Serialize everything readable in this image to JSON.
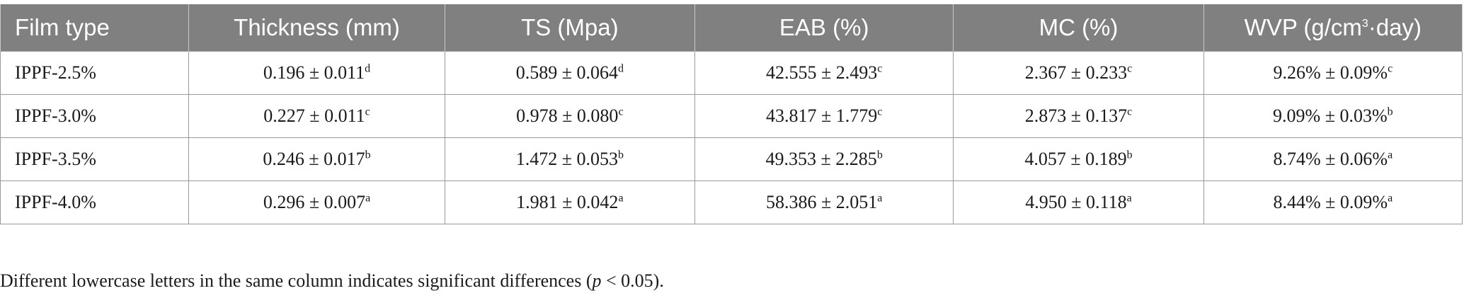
{
  "table": {
    "headers": [
      {
        "text": "Film type",
        "sup": "",
        "suffix": ""
      },
      {
        "text": "Thickness (mm)",
        "sup": "",
        "suffix": ""
      },
      {
        "text": "TS (Mpa)",
        "sup": "",
        "suffix": ""
      },
      {
        "text": "EAB (%)",
        "sup": "",
        "suffix": ""
      },
      {
        "text": "MC (%)",
        "sup": "",
        "suffix": ""
      },
      {
        "text": "WVP (g/cm",
        "sup": "3",
        "suffix": "·day)"
      }
    ],
    "rows": [
      {
        "film": "IPPF-2.5%",
        "cells": [
          {
            "value": "0.196 ± 0.011",
            "sig": "d"
          },
          {
            "value": "0.589 ± 0.064",
            "sig": "d"
          },
          {
            "value": "42.555 ± 2.493",
            "sig": "c"
          },
          {
            "value": "2.367 ± 0.233",
            "sig": "c"
          },
          {
            "value": "9.26% ± 0.09%",
            "sig": "c"
          }
        ]
      },
      {
        "film": "IPPF-3.0%",
        "cells": [
          {
            "value": "0.227 ± 0.011",
            "sig": "c"
          },
          {
            "value": "0.978 ± 0.080",
            "sig": "c"
          },
          {
            "value": "43.817 ± 1.779",
            "sig": "c"
          },
          {
            "value": "2.873 ± 0.137",
            "sig": "c"
          },
          {
            "value": "9.09% ± 0.03%",
            "sig": "b"
          }
        ]
      },
      {
        "film": "IPPF-3.5%",
        "cells": [
          {
            "value": "0.246 ± 0.017",
            "sig": "b"
          },
          {
            "value": "1.472 ± 0.053",
            "sig": "b"
          },
          {
            "value": "49.353 ± 2.285",
            "sig": "b"
          },
          {
            "value": "4.057 ± 0.189",
            "sig": "b"
          },
          {
            "value": "8.74% ± 0.06%",
            "sig": "a"
          }
        ]
      },
      {
        "film": "IPPF-4.0%",
        "cells": [
          {
            "value": "0.296 ± 0.007",
            "sig": "a"
          },
          {
            "value": "1.981 ± 0.042",
            "sig": "a"
          },
          {
            "value": "58.386 ± 2.051",
            "sig": "a"
          },
          {
            "value": "4.950 ± 0.118",
            "sig": "a"
          },
          {
            "value": "8.44% ± 0.09%",
            "sig": "a"
          }
        ]
      }
    ]
  },
  "footnote": {
    "before": "Different lowercase letters in the same column indicates significant differences (",
    "italic": "p",
    "after": " < 0.05)."
  },
  "colors": {
    "header_bg": "#808080",
    "header_text": "#ffffff",
    "border": "#9a9a9a"
  }
}
